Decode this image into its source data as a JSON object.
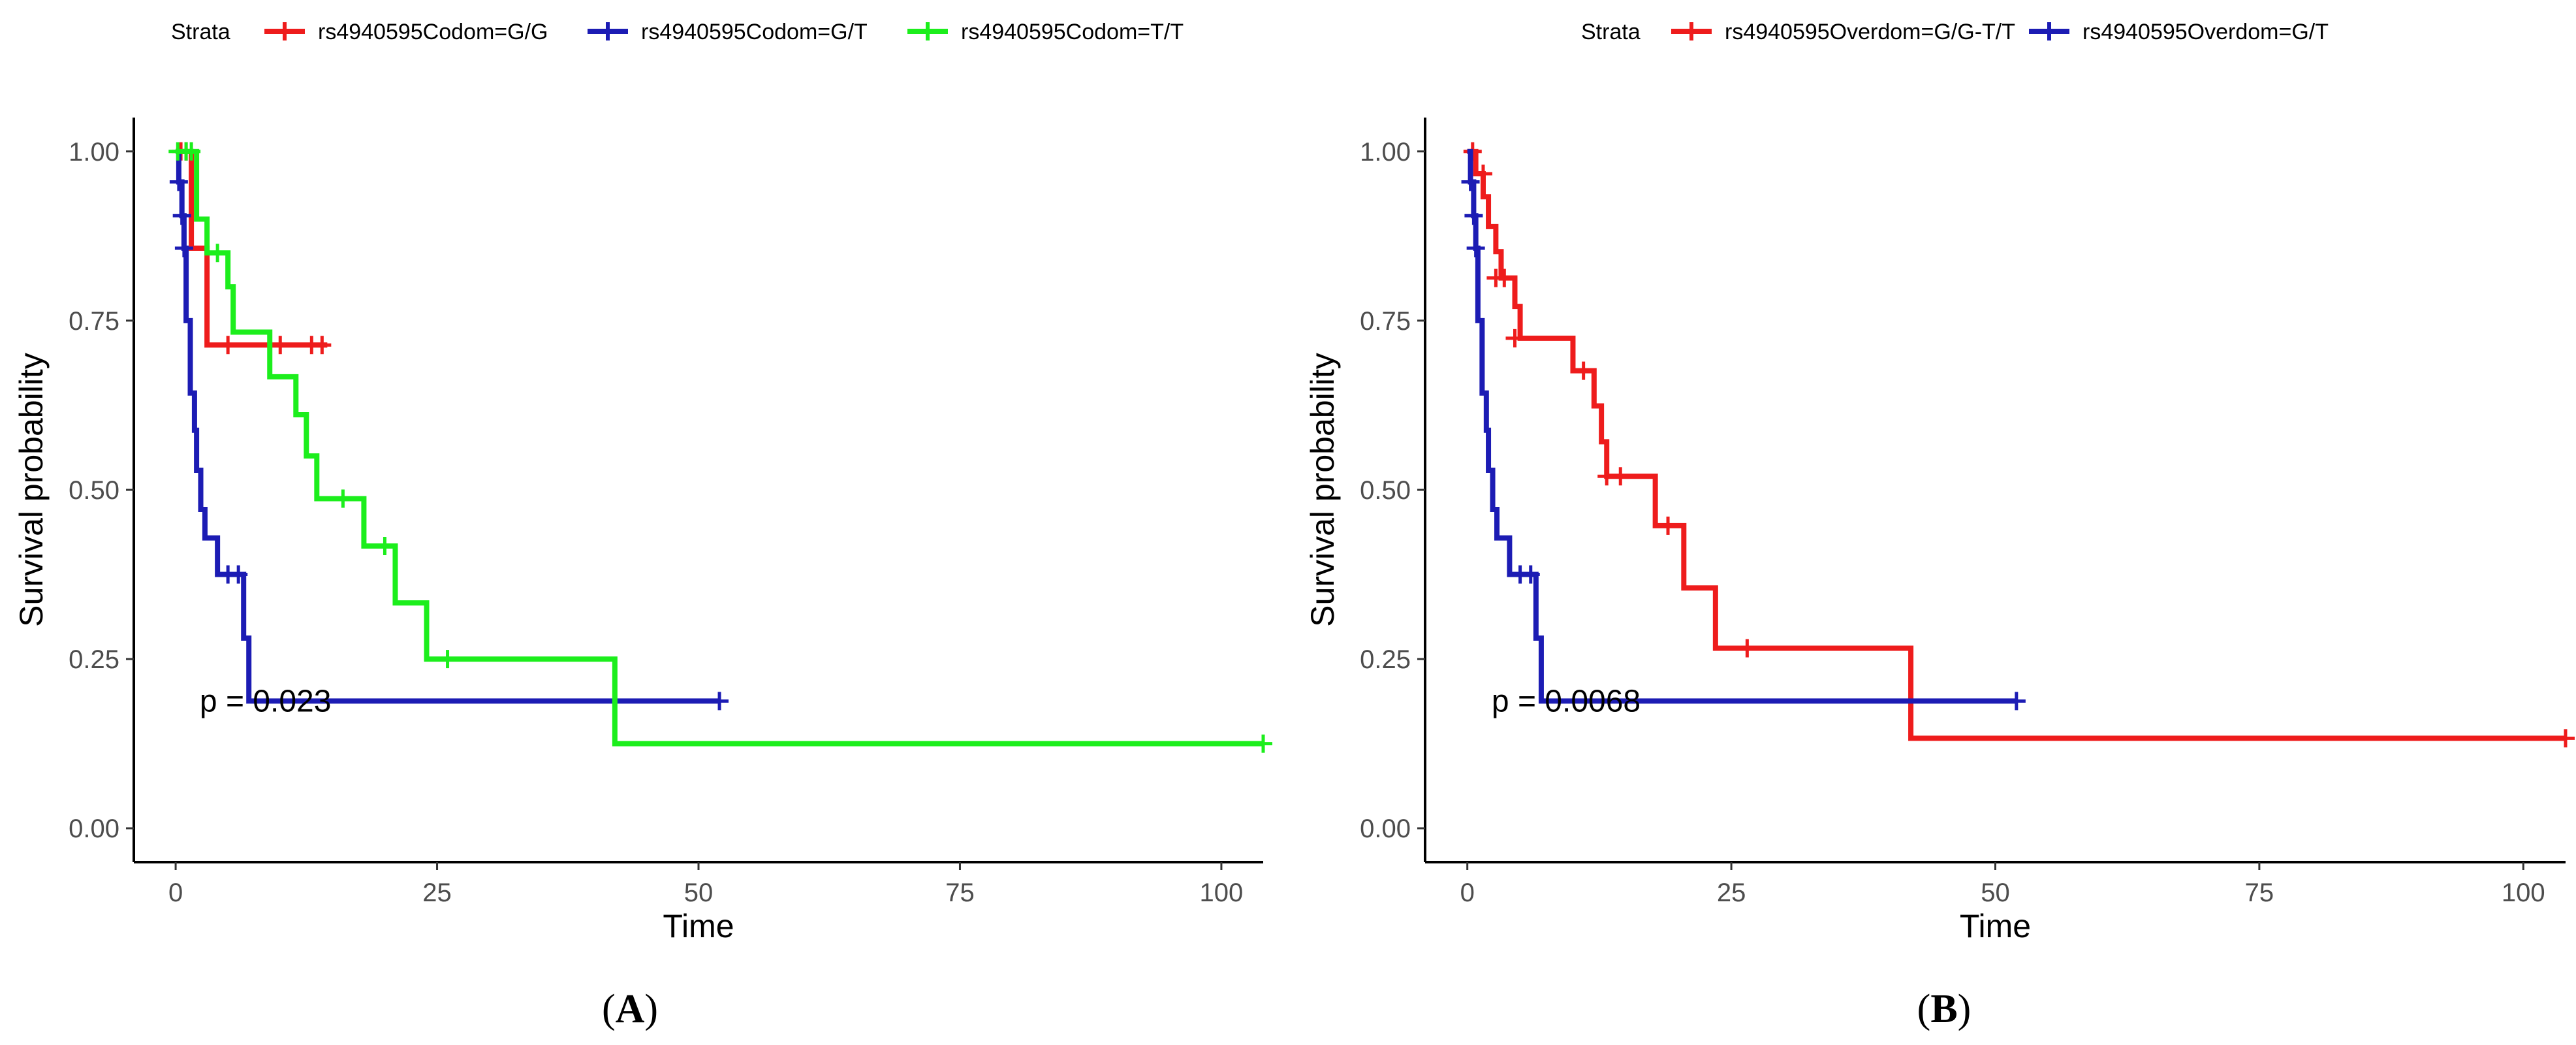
{
  "chart_data": [
    {
      "type": "line",
      "subtype": "kaplan-meier",
      "panel_label": "A",
      "legend_title": "Strata",
      "legend_position": "top",
      "xlabel": "Time",
      "ylabel": "Survival probability",
      "xlim": [
        -4,
        104
      ],
      "ylim": [
        -0.05,
        1.05
      ],
      "xticks": [
        0,
        25,
        50,
        75,
        100
      ],
      "xtick_labels": [
        "0",
        "25",
        "50",
        "75",
        "100"
      ],
      "yticks": [
        0,
        0.25,
        0.5,
        0.75,
        1.0
      ],
      "ytick_labels": [
        "0.00",
        "0.25",
        "0.50",
        "0.75",
        "1.00"
      ],
      "annotation": {
        "text": "p = 0.023",
        "x": 2.3,
        "y": 0.19
      },
      "series": [
        {
          "name": "rs4940595Codom=G/G",
          "color": "#ee1c1c",
          "steps": [
            [
              0,
              1.0
            ],
            [
              1.5,
              0.857
            ],
            [
              3.0,
              0.714
            ],
            [
              14.5,
              0.714
            ]
          ],
          "censors": [
            [
              0.5,
              1.0
            ],
            [
              1.0,
              1.0
            ],
            [
              5.0,
              0.714
            ],
            [
              10.0,
              0.714
            ],
            [
              13.0,
              0.714
            ],
            [
              14.0,
              0.714
            ]
          ]
        },
        {
          "name": "rs4940595Codom=G/T",
          "color": "#1c1cb4",
          "steps": [
            [
              0,
              1.0
            ],
            [
              0.3,
              0.955
            ],
            [
              0.6,
              0.905
            ],
            [
              0.8,
              0.857
            ],
            [
              1.0,
              0.75
            ],
            [
              1.4,
              0.643
            ],
            [
              1.8,
              0.588
            ],
            [
              2.0,
              0.529
            ],
            [
              2.4,
              0.471
            ],
            [
              2.8,
              0.429
            ],
            [
              4.0,
              0.375
            ],
            [
              6.5,
              0.281
            ],
            [
              7.0,
              0.188
            ],
            [
              52.0,
              0.188
            ]
          ],
          "censors": [
            [
              0.3,
              0.955
            ],
            [
              0.6,
              0.905
            ],
            [
              0.8,
              0.857
            ],
            [
              5.0,
              0.375
            ],
            [
              6.0,
              0.375
            ],
            [
              52.0,
              0.188
            ]
          ]
        },
        {
          "name": "rs4940595Codom=T/T",
          "color": "#1cee1c",
          "steps": [
            [
              0,
              1.0
            ],
            [
              2.0,
              0.9
            ],
            [
              3.0,
              0.85
            ],
            [
              5.0,
              0.8
            ],
            [
              5.5,
              0.733
            ],
            [
              9.0,
              0.667
            ],
            [
              11.5,
              0.611
            ],
            [
              12.5,
              0.55
            ],
            [
              13.5,
              0.487
            ],
            [
              18.0,
              0.417
            ],
            [
              21.0,
              0.333
            ],
            [
              24.0,
              0.25
            ],
            [
              42.0,
              0.125
            ],
            [
              104.0,
              0.125
            ]
          ],
          "censors": [
            [
              0.2,
              1.0
            ],
            [
              1.0,
              1.0
            ],
            [
              1.5,
              1.0
            ],
            [
              4.0,
              0.85
            ],
            [
              16.0,
              0.487
            ],
            [
              20.0,
              0.417
            ],
            [
              26.0,
              0.25
            ],
            [
              104.0,
              0.125
            ]
          ]
        }
      ]
    },
    {
      "type": "line",
      "subtype": "kaplan-meier",
      "panel_label": "B",
      "legend_title": "Strata",
      "legend_position": "top",
      "xlabel": "Time",
      "ylabel": "Survival probability",
      "xlim": [
        -4,
        104
      ],
      "ylim": [
        -0.05,
        1.05
      ],
      "xticks": [
        0,
        25,
        50,
        75,
        100
      ],
      "xtick_labels": [
        "0",
        "25",
        "50",
        "75",
        "100"
      ],
      "yticks": [
        0,
        0.25,
        0.5,
        0.75,
        1.0
      ],
      "ytick_labels": [
        "0.00",
        "0.25",
        "0.50",
        "0.75",
        "1.00"
      ],
      "annotation": {
        "text": "p = 0.0068",
        "x": 2.3,
        "y": 0.19
      },
      "series": [
        {
          "name": "rs4940595Overdom=G/G-T/T",
          "color": "#ee1c1c",
          "steps": [
            [
              0,
              1.0
            ],
            [
              0.8,
              0.967
            ],
            [
              1.5,
              0.933
            ],
            [
              2.0,
              0.889
            ],
            [
              2.7,
              0.852
            ],
            [
              3.2,
              0.813
            ],
            [
              4.5,
              0.771
            ],
            [
              5.0,
              0.724
            ],
            [
              10.0,
              0.676
            ],
            [
              12.0,
              0.624
            ],
            [
              12.7,
              0.571
            ],
            [
              13.2,
              0.52
            ],
            [
              17.8,
              0.447
            ],
            [
              20.5,
              0.355
            ],
            [
              23.5,
              0.266
            ],
            [
              42.0,
              0.133
            ],
            [
              104.0,
              0.133
            ]
          ],
          "censors": [
            [
              0.5,
              1.0
            ],
            [
              1.5,
              0.967
            ],
            [
              2.7,
              0.813
            ],
            [
              3.5,
              0.813
            ],
            [
              4.5,
              0.724
            ],
            [
              11.0,
              0.676
            ],
            [
              13.2,
              0.52
            ],
            [
              14.5,
              0.52
            ],
            [
              19.0,
              0.447
            ],
            [
              26.5,
              0.266
            ],
            [
              104.0,
              0.133
            ]
          ]
        },
        {
          "name": "rs4940595Overdom=G/T",
          "color": "#1c1cb4",
          "steps": [
            [
              0,
              1.0
            ],
            [
              0.3,
              0.955
            ],
            [
              0.6,
              0.905
            ],
            [
              0.8,
              0.857
            ],
            [
              1.0,
              0.75
            ],
            [
              1.4,
              0.643
            ],
            [
              1.8,
              0.588
            ],
            [
              2.0,
              0.529
            ],
            [
              2.4,
              0.471
            ],
            [
              2.8,
              0.429
            ],
            [
              4.0,
              0.375
            ],
            [
              6.5,
              0.281
            ],
            [
              7.0,
              0.188
            ],
            [
              52.0,
              0.188
            ]
          ],
          "censors": [
            [
              0.3,
              0.955
            ],
            [
              0.6,
              0.905
            ],
            [
              0.8,
              0.857
            ],
            [
              5.0,
              0.375
            ],
            [
              6.0,
              0.375
            ],
            [
              52.0,
              0.188
            ]
          ]
        }
      ]
    }
  ]
}
